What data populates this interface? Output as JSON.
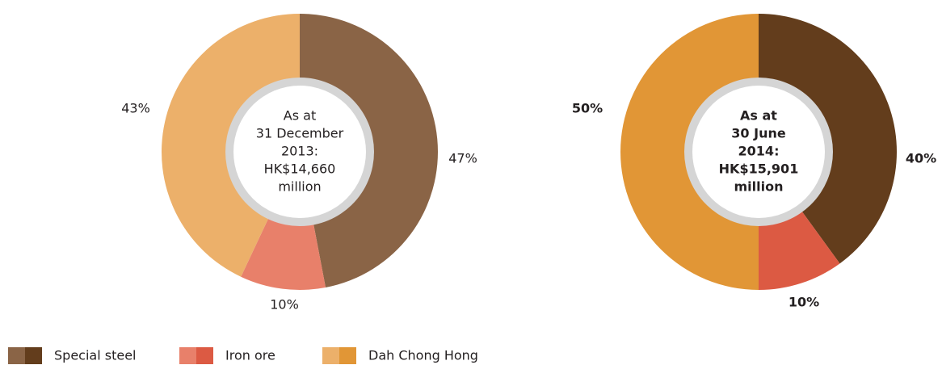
{
  "chart_data": [
    {
      "type": "pie",
      "donut": true,
      "bold": false,
      "center_text": [
        "As at",
        "31 December",
        "2013:",
        "HK$14,660",
        "million"
      ],
      "values": [
        47,
        10,
        43
      ],
      "value_labels": [
        "47%",
        "10%",
        "43%"
      ],
      "colors": [
        "#8a6446",
        "#e8806a",
        "#ecb06a"
      ]
    },
    {
      "type": "pie",
      "donut": true,
      "bold": true,
      "center_text": [
        "As at",
        "30 June",
        "2014:",
        "HK$15,901",
        "million"
      ],
      "values": [
        40,
        10,
        50
      ],
      "value_labels": [
        "40%",
        "10%",
        "50%"
      ],
      "colors": [
        "#633d1c",
        "#dc5a43",
        "#e19636"
      ]
    }
  ],
  "legend": {
    "labels": [
      "Special steel",
      "Iron ore",
      "Dah Chong Hong"
    ]
  }
}
